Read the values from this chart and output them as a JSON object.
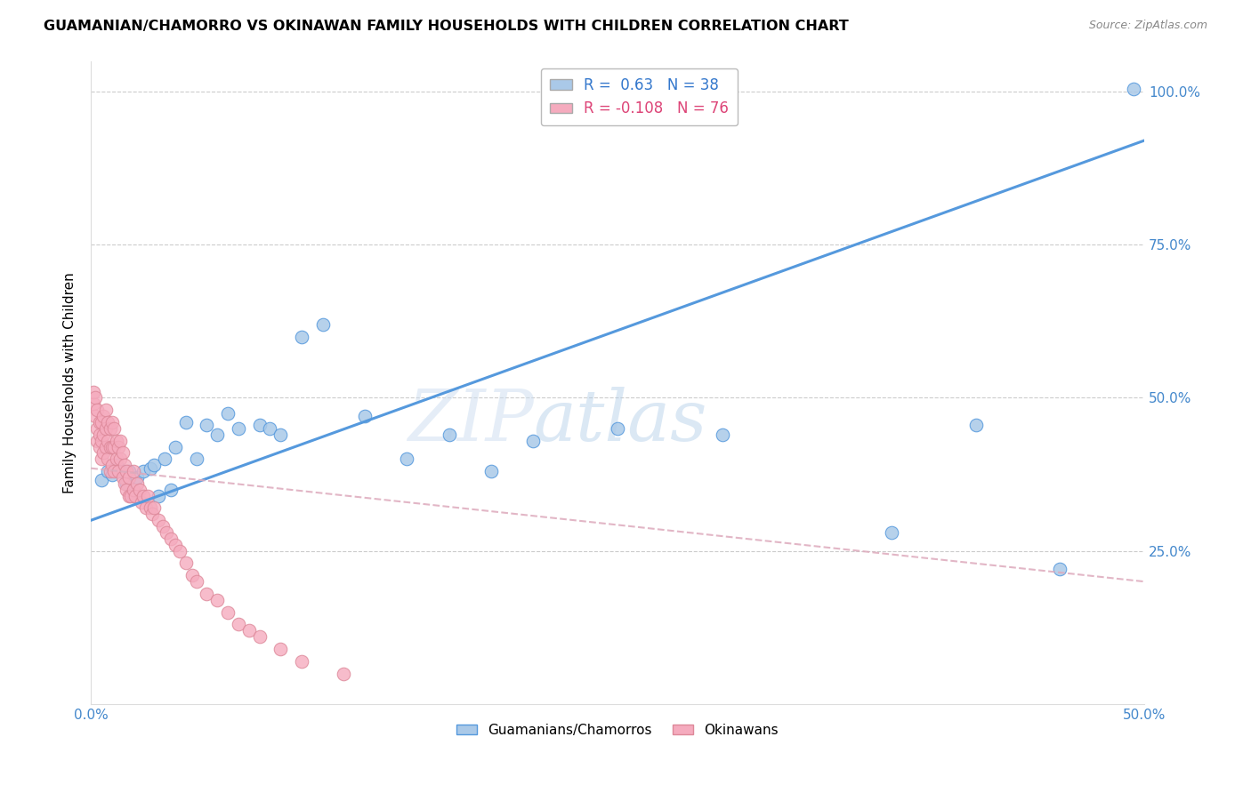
{
  "title": "GUAMANIAN/CHAMORRO VS OKINAWAN FAMILY HOUSEHOLDS WITH CHILDREN CORRELATION CHART",
  "source": "Source: ZipAtlas.com",
  "ylabel": "Family Households with Children",
  "legend_label_1": "Guamanians/Chamorros",
  "legend_label_2": "Okinawans",
  "R1": 0.63,
  "N1": 38,
  "R2": -0.108,
  "N2": 76,
  "xlim": [
    0.0,
    0.5
  ],
  "ylim": [
    0.0,
    1.05
  ],
  "color_blue": "#aac9e8",
  "color_pink": "#f5abbe",
  "color_blue_line": "#5599dd",
  "color_pink_line": "#ddaabc",
  "blue_points_x": [
    0.005,
    0.008,
    0.01,
    0.012,
    0.015,
    0.017,
    0.018,
    0.02,
    0.022,
    0.025,
    0.028,
    0.03,
    0.032,
    0.035,
    0.038,
    0.04,
    0.045,
    0.05,
    0.055,
    0.06,
    0.065,
    0.07,
    0.08,
    0.085,
    0.09,
    0.1,
    0.11,
    0.13,
    0.15,
    0.17,
    0.19,
    0.21,
    0.25,
    0.3,
    0.38,
    0.42,
    0.46,
    0.495
  ],
  "blue_points_y": [
    0.365,
    0.38,
    0.375,
    0.39,
    0.38,
    0.36,
    0.38,
    0.34,
    0.37,
    0.38,
    0.385,
    0.39,
    0.34,
    0.4,
    0.35,
    0.42,
    0.46,
    0.4,
    0.455,
    0.44,
    0.475,
    0.45,
    0.455,
    0.45,
    0.44,
    0.6,
    0.62,
    0.47,
    0.4,
    0.44,
    0.38,
    0.43,
    0.45,
    0.44,
    0.28,
    0.455,
    0.22,
    1.005
  ],
  "pink_points_x": [
    0.001,
    0.001,
    0.002,
    0.002,
    0.003,
    0.003,
    0.003,
    0.004,
    0.004,
    0.004,
    0.005,
    0.005,
    0.005,
    0.006,
    0.006,
    0.006,
    0.007,
    0.007,
    0.007,
    0.008,
    0.008,
    0.008,
    0.009,
    0.009,
    0.009,
    0.01,
    0.01,
    0.01,
    0.011,
    0.011,
    0.011,
    0.012,
    0.012,
    0.013,
    0.013,
    0.014,
    0.014,
    0.015,
    0.015,
    0.016,
    0.016,
    0.017,
    0.017,
    0.018,
    0.018,
    0.019,
    0.02,
    0.02,
    0.021,
    0.022,
    0.023,
    0.024,
    0.025,
    0.026,
    0.027,
    0.028,
    0.029,
    0.03,
    0.032,
    0.034,
    0.036,
    0.038,
    0.04,
    0.042,
    0.045,
    0.048,
    0.05,
    0.055,
    0.06,
    0.065,
    0.07,
    0.075,
    0.08,
    0.09,
    0.1,
    0.12
  ],
  "pink_points_y": [
    0.49,
    0.51,
    0.47,
    0.5,
    0.45,
    0.43,
    0.48,
    0.46,
    0.44,
    0.42,
    0.4,
    0.43,
    0.46,
    0.44,
    0.41,
    0.47,
    0.42,
    0.45,
    0.48,
    0.4,
    0.43,
    0.46,
    0.38,
    0.42,
    0.45,
    0.39,
    0.42,
    0.46,
    0.38,
    0.42,
    0.45,
    0.4,
    0.43,
    0.38,
    0.42,
    0.4,
    0.43,
    0.37,
    0.41,
    0.36,
    0.39,
    0.35,
    0.38,
    0.34,
    0.37,
    0.34,
    0.35,
    0.38,
    0.34,
    0.36,
    0.35,
    0.33,
    0.34,
    0.32,
    0.34,
    0.32,
    0.31,
    0.32,
    0.3,
    0.29,
    0.28,
    0.27,
    0.26,
    0.25,
    0.23,
    0.21,
    0.2,
    0.18,
    0.17,
    0.15,
    0.13,
    0.12,
    0.11,
    0.09,
    0.07,
    0.05
  ]
}
